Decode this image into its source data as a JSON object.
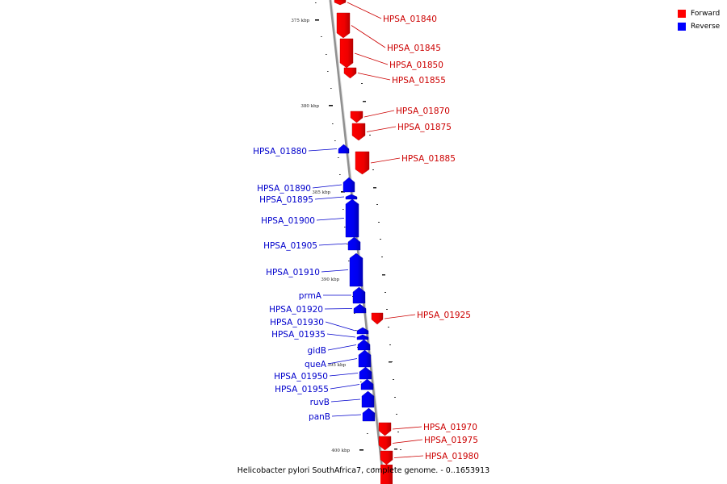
{
  "caption": "Helicobacter pylori SouthAfrica7, complete genome. - 0..1653913",
  "legend": [
    {
      "label": "Forward",
      "color": "#ff0000"
    },
    {
      "label": "Reverse",
      "color": "#0000ff"
    }
  ],
  "colors": {
    "forward": "#ff0000",
    "forward_label": "#cc0000",
    "reverse": "#0000ff",
    "reverse_label": "#0000cc",
    "backbone": "#909090"
  },
  "ticks": [
    {
      "label": "375 kbp"
    },
    {
      "label": "380 kbp"
    },
    {
      "label": "385 kbp"
    },
    {
      "label": "390 kbp"
    },
    {
      "label": "395 kbp"
    },
    {
      "label": "400 kbp"
    }
  ],
  "genes": [
    {
      "name": "HPSA_01840",
      "strand": "forward"
    },
    {
      "name": "HPSA_01845",
      "strand": "forward"
    },
    {
      "name": "HPSA_01850",
      "strand": "forward"
    },
    {
      "name": "HPSA_01855",
      "strand": "forward"
    },
    {
      "name": "HPSA_01870",
      "strand": "forward"
    },
    {
      "name": "HPSA_01875",
      "strand": "forward"
    },
    {
      "name": "HPSA_01880",
      "strand": "reverse"
    },
    {
      "name": "HPSA_01885",
      "strand": "forward"
    },
    {
      "name": "HPSA_01890",
      "strand": "reverse"
    },
    {
      "name": "HPSA_01895",
      "strand": "reverse"
    },
    {
      "name": "HPSA_01900",
      "strand": "reverse"
    },
    {
      "name": "HPSA_01905",
      "strand": "reverse"
    },
    {
      "name": "HPSA_01910",
      "strand": "reverse"
    },
    {
      "name": "prmA",
      "strand": "reverse"
    },
    {
      "name": "HPSA_01920",
      "strand": "reverse"
    },
    {
      "name": "HPSA_01925",
      "strand": "forward"
    },
    {
      "name": "HPSA_01930",
      "strand": "reverse"
    },
    {
      "name": "HPSA_01935",
      "strand": "reverse"
    },
    {
      "name": "gidB",
      "strand": "reverse"
    },
    {
      "name": "queA",
      "strand": "reverse"
    },
    {
      "name": "HPSA_01950",
      "strand": "reverse"
    },
    {
      "name": "HPSA_01955",
      "strand": "reverse"
    },
    {
      "name": "ruvB",
      "strand": "reverse"
    },
    {
      "name": "panB",
      "strand": "reverse"
    },
    {
      "name": "HPSA_01970",
      "strand": "forward"
    },
    {
      "name": "HPSA_01975",
      "strand": "forward"
    },
    {
      "name": "HPSA_01980",
      "strand": "forward"
    }
  ]
}
